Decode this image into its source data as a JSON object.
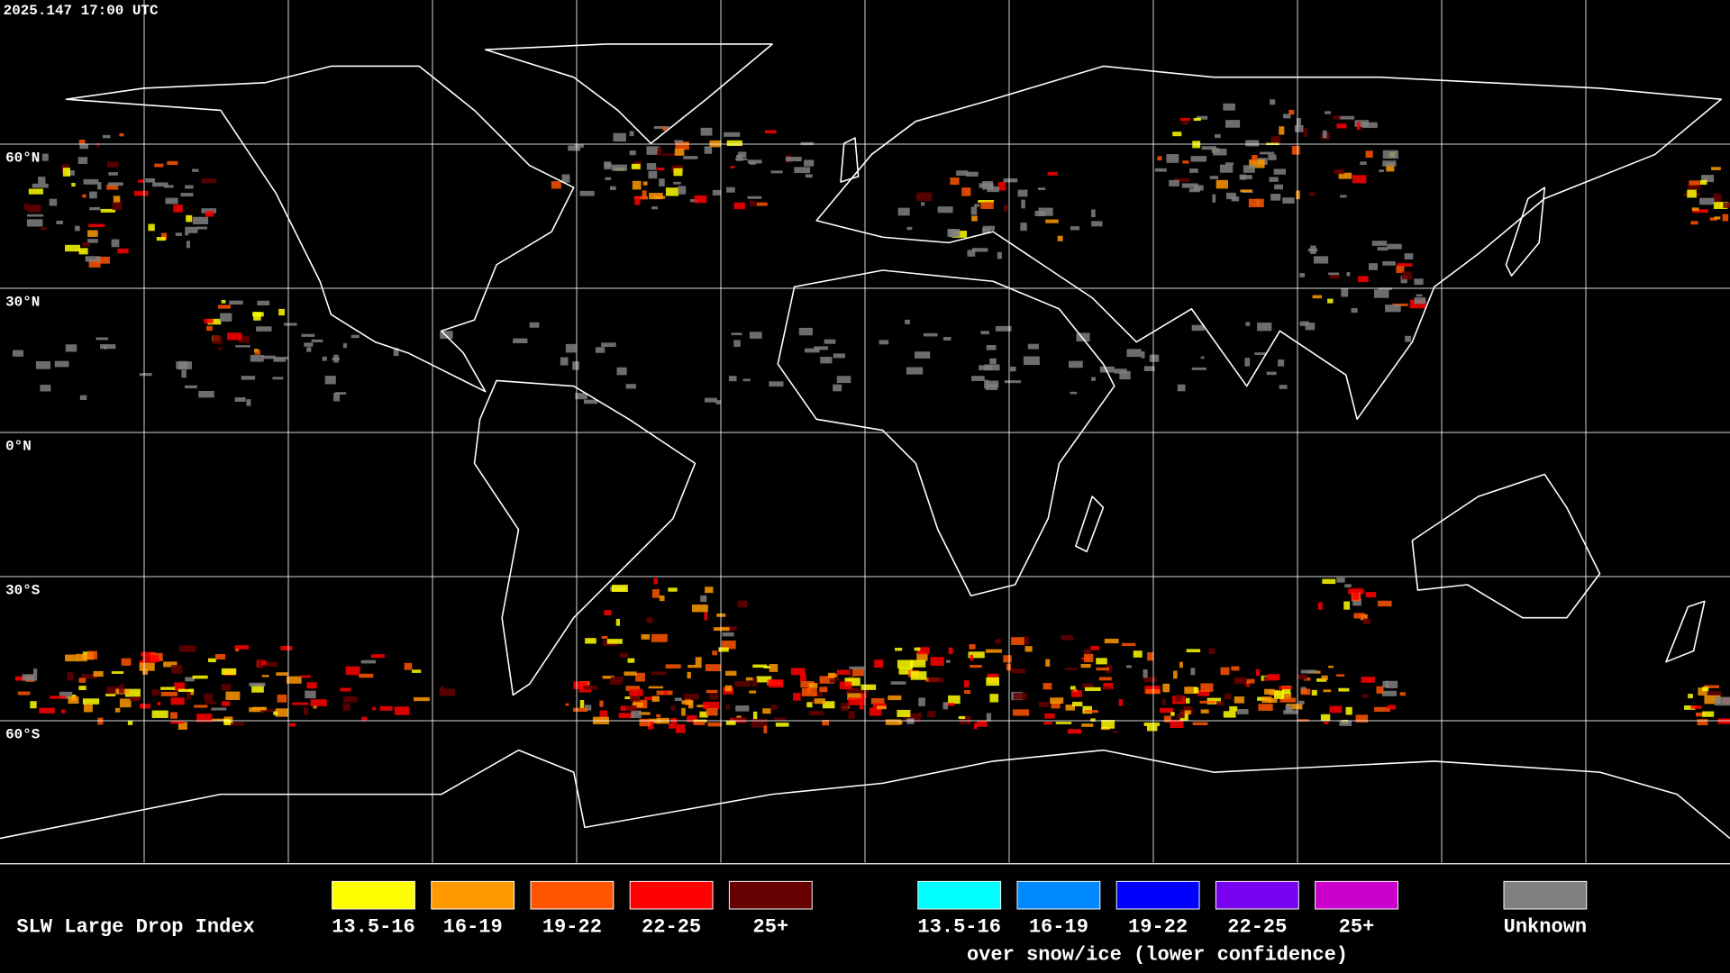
{
  "header": {
    "timestamp": "2025.147 17:00 UTC"
  },
  "map": {
    "latitude_labels": [
      "60°N",
      "30°N",
      "0°N",
      "30°S",
      "60°S"
    ]
  },
  "legend": {
    "title": "SLW Large Drop Index",
    "groups": [
      {
        "items": [
          {
            "label": "13.5-16",
            "color": "#ffff00"
          },
          {
            "label": "16-19",
            "color": "#ff9900"
          },
          {
            "label": "19-22",
            "color": "#ff5500"
          },
          {
            "label": "22-25",
            "color": "#ff0000"
          },
          {
            "label": "25+",
            "color": "#660000"
          }
        ]
      },
      {
        "items": [
          {
            "label": "13.5-16",
            "color": "#00ffff"
          },
          {
            "label": "16-19",
            "color": "#0088ff"
          },
          {
            "label": "19-22",
            "color": "#0000ff"
          },
          {
            "label": "22-25",
            "color": "#7700ee"
          },
          {
            "label": "25+",
            "color": "#cc00cc"
          }
        ],
        "caption": "over snow/ice (lower confidence)"
      },
      {
        "items": [
          {
            "label": "Unknown",
            "color": "#808080"
          }
        ]
      }
    ]
  }
}
